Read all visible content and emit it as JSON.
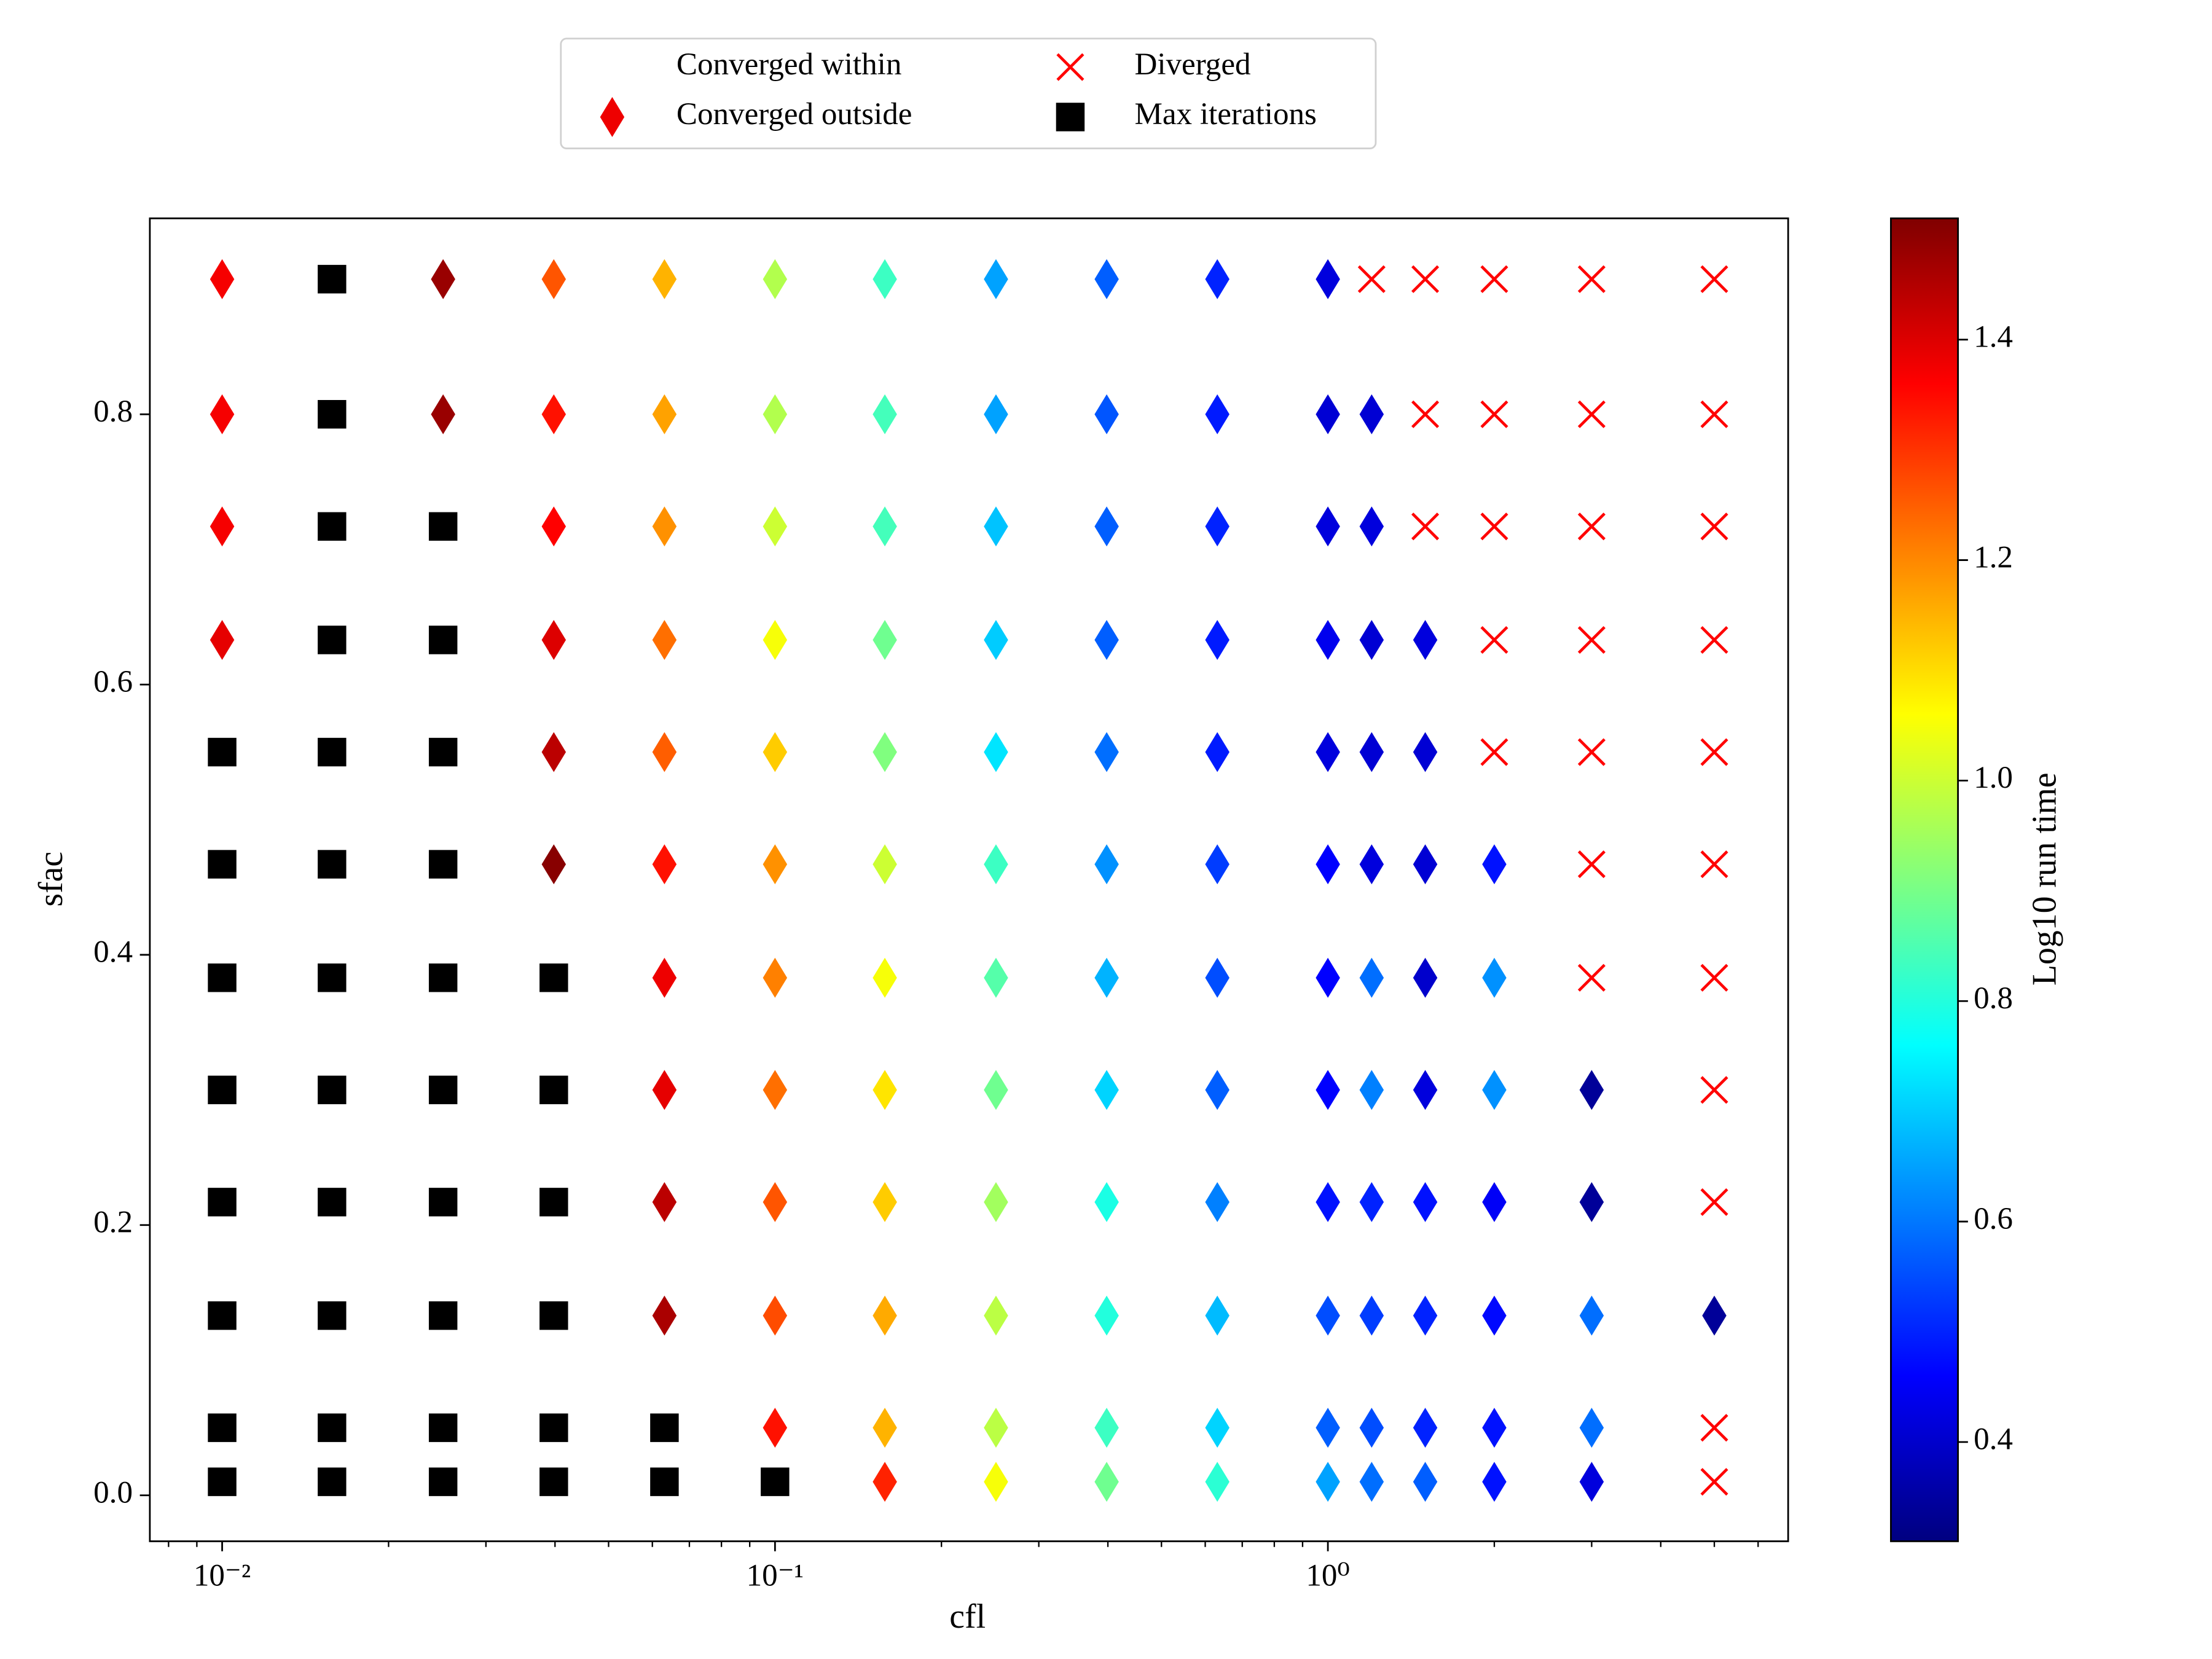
{
  "chart_data": {
    "type": "scatter",
    "x_label": "cfl",
    "y_label": "sfac",
    "xscale": "log",
    "xlim": [
      0.0074,
      6.8
    ],
    "xticks": [
      {
        "value": 0.01,
        "label": "10⁻²"
      },
      {
        "value": 0.1,
        "label": "10⁻¹"
      },
      {
        "value": 1,
        "label": "10⁰"
      }
    ],
    "xminorticks": [
      0.008,
      0.009,
      0.02,
      0.03,
      0.04,
      0.05,
      0.06,
      0.07,
      0.08,
      0.09,
      0.2,
      0.3,
      0.4,
      0.5,
      0.6,
      0.7,
      0.8,
      0.9,
      2,
      3,
      4,
      5,
      6
    ],
    "ylim": [
      -0.034,
      0.945
    ],
    "yticks": [
      {
        "value": 0,
        "label": "0.0"
      },
      0.2,
      0.4,
      0.6,
      0.8
    ],
    "colorbar": {
      "label": "Log10 run time",
      "colormap": "jet",
      "clim": [
        0.31,
        1.51
      ],
      "ticks": [
        0.4,
        0.6,
        0.8,
        {
          "value": 1,
          "label": "1.0"
        },
        1.2,
        1.4
      ]
    },
    "legend": "upper center",
    "series": [
      {
        "name": "Converged within"
      },
      {
        "name": "Converged outside",
        "marker": "diamond",
        "color": "#ee0000",
        "x": [
          0.01,
          0.0251,
          0.0398,
          0.0631,
          0.1,
          0.158,
          0.251,
          0.398,
          0.631,
          1,
          0.01,
          0.0251,
          0.0398,
          0.0631,
          0.1,
          0.158,
          0.251,
          0.398,
          0.631,
          1,
          1.2,
          0.01,
          0.0398,
          0.0631,
          0.1,
          0.158,
          0.251,
          0.398,
          0.631,
          1,
          1.2,
          0.01,
          0.0398,
          0.0631,
          0.1,
          0.158,
          0.251,
          0.398,
          0.631,
          1,
          1.2,
          1.5,
          0.0398,
          0.0631,
          0.1,
          0.158,
          0.251,
          0.398,
          0.631,
          1,
          1.2,
          1.5,
          0.0398,
          0.0631,
          0.1,
          0.158,
          0.251,
          0.398,
          0.631,
          1,
          1.2,
          1.5,
          2,
          0.0631,
          0.1,
          0.158,
          0.251,
          0.398,
          0.631,
          1,
          1.2,
          1.5,
          2,
          0.0631,
          0.1,
          0.158,
          0.251,
          0.398,
          0.631,
          1,
          1.2,
          1.5,
          2,
          3,
          0.0631,
          0.1,
          0.158,
          0.251,
          0.398,
          0.631,
          1,
          1.2,
          1.5,
          2,
          3,
          0.0631,
          0.1,
          0.158,
          0.251,
          0.398,
          0.631,
          1,
          1.2,
          1.5,
          2,
          3,
          5,
          0.1,
          0.158,
          0.251,
          0.398,
          0.631,
          1,
          1.2,
          1.5,
          2,
          3,
          0.158,
          0.251,
          0.398,
          0.631,
          1,
          1.2,
          1.5,
          2,
          3
        ],
        "y": [
          0.9,
          0.9,
          0.9,
          0.9,
          0.9,
          0.9,
          0.9,
          0.9,
          0.9,
          0.9,
          0.8,
          0.8,
          0.8,
          0.8,
          0.8,
          0.8,
          0.8,
          0.8,
          0.8,
          0.8,
          0.8,
          0.717,
          0.717,
          0.717,
          0.717,
          0.717,
          0.717,
          0.717,
          0.717,
          0.717,
          0.717,
          0.633,
          0.633,
          0.633,
          0.633,
          0.633,
          0.633,
          0.633,
          0.633,
          0.633,
          0.633,
          0.633,
          0.55,
          0.55,
          0.55,
          0.55,
          0.55,
          0.55,
          0.55,
          0.55,
          0.55,
          0.55,
          0.467,
          0.467,
          0.467,
          0.467,
          0.467,
          0.467,
          0.467,
          0.467,
          0.467,
          0.467,
          0.467,
          0.383,
          0.383,
          0.383,
          0.383,
          0.383,
          0.383,
          0.383,
          0.383,
          0.383,
          0.383,
          0.3,
          0.3,
          0.3,
          0.3,
          0.3,
          0.3,
          0.3,
          0.3,
          0.3,
          0.3,
          0.3,
          0.217,
          0.217,
          0.217,
          0.217,
          0.217,
          0.217,
          0.217,
          0.217,
          0.217,
          0.217,
          0.217,
          0.133,
          0.133,
          0.133,
          0.133,
          0.133,
          0.133,
          0.133,
          0.133,
          0.133,
          0.133,
          0.133,
          0.133,
          0.05,
          0.05,
          0.05,
          0.05,
          0.05,
          0.05,
          0.05,
          0.05,
          0.05,
          0.05,
          0.01,
          0.01,
          0.01,
          0.01,
          0.01,
          0.01,
          0.01,
          0.01,
          0.01
        ],
        "c": [
          1.37,
          1.48,
          1.26,
          1.15,
          0.97,
          0.83,
          0.65,
          0.57,
          0.5,
          0.42,
          1.37,
          1.48,
          1.34,
          1.17,
          0.97,
          0.84,
          0.65,
          0.56,
          0.49,
          0.41,
          0.41,
          1.37,
          1.36,
          1.19,
          1.0,
          0.84,
          0.69,
          0.57,
          0.5,
          0.42,
          0.42,
          1.39,
          1.4,
          1.23,
          1.05,
          0.89,
          0.7,
          0.57,
          0.49,
          0.44,
          0.41,
          0.42,
          1.44,
          1.25,
          1.12,
          0.91,
          0.73,
          0.59,
          0.49,
          0.42,
          0.41,
          0.41,
          1.5,
          1.34,
          1.19,
          1.0,
          0.83,
          0.63,
          0.53,
          0.46,
          0.42,
          0.41,
          0.48,
          1.38,
          1.21,
          1.05,
          0.86,
          0.67,
          0.55,
          0.46,
          0.59,
          0.4,
          0.63,
          1.39,
          1.23,
          1.09,
          0.89,
          0.71,
          0.57,
          0.46,
          0.61,
          0.42,
          0.63,
          0.34,
          1.44,
          1.26,
          1.12,
          0.95,
          0.79,
          0.61,
          0.48,
          0.5,
          0.48,
          0.45,
          0.34,
          1.46,
          1.27,
          1.16,
          0.98,
          0.8,
          0.68,
          0.55,
          0.53,
          0.5,
          0.47,
          0.59,
          0.34,
          1.34,
          1.15,
          0.98,
          0.83,
          0.71,
          0.57,
          0.55,
          0.5,
          0.48,
          0.59,
          1.32,
          1.05,
          0.89,
          0.81,
          0.65,
          0.59,
          0.57,
          0.48,
          0.42
        ]
      },
      {
        "name": "Diverged",
        "marker": "x",
        "color": "#ff0000",
        "x": [
          1.2,
          1.5,
          2,
          3,
          5,
          1.5,
          2,
          3,
          5,
          1.5,
          2,
          3,
          5,
          2,
          3,
          5,
          2,
          3,
          5,
          3,
          5,
          3,
          5,
          5,
          5,
          5,
          5
        ],
        "y": [
          0.9,
          0.9,
          0.9,
          0.9,
          0.9,
          0.8,
          0.8,
          0.8,
          0.8,
          0.717,
          0.717,
          0.717,
          0.717,
          0.633,
          0.633,
          0.633,
          0.55,
          0.55,
          0.55,
          0.467,
          0.467,
          0.383,
          0.383,
          0.3,
          0.217,
          0.05,
          0.01
        ]
      },
      {
        "name": "Max iterations",
        "marker": "square",
        "color": "#000000",
        "x": [
          0.0158,
          0.0158,
          0.0158,
          0.0251,
          0.0158,
          0.0251,
          0.01,
          0.0158,
          0.0251,
          0.01,
          0.0158,
          0.0251,
          0.01,
          0.0158,
          0.0251,
          0.0398,
          0.01,
          0.0158,
          0.0251,
          0.0398,
          0.01,
          0.0158,
          0.0251,
          0.0398,
          0.01,
          0.0158,
          0.0251,
          0.0398,
          0.01,
          0.0158,
          0.0251,
          0.0398,
          0.0631,
          0.01,
          0.0158,
          0.0251,
          0.0398,
          0.0631,
          0.1
        ],
        "y": [
          0.9,
          0.8,
          0.717,
          0.717,
          0.633,
          0.633,
          0.55,
          0.55,
          0.55,
          0.467,
          0.467,
          0.467,
          0.383,
          0.383,
          0.383,
          0.383,
          0.3,
          0.3,
          0.3,
          0.3,
          0.217,
          0.217,
          0.217,
          0.217,
          0.133,
          0.133,
          0.133,
          0.133,
          0.05,
          0.05,
          0.05,
          0.05,
          0.05,
          0.01,
          0.01,
          0.01,
          0.01,
          0.01,
          0.01
        ]
      }
    ]
  }
}
